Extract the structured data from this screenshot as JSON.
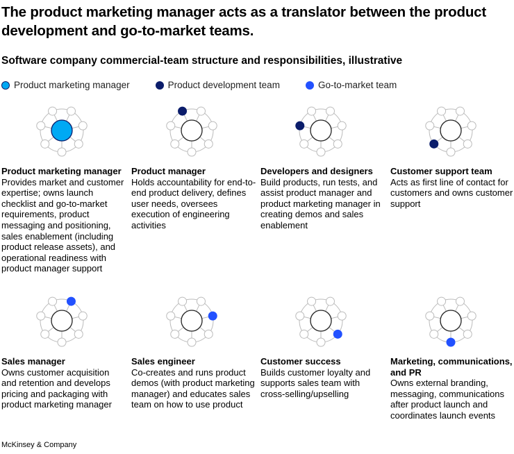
{
  "title": "The product marketing manager acts as a translator between the product development and go-to-market teams.",
  "subtitle": "Software company commercial-team structure and responsibilities, illustrative",
  "colors": {
    "pmm": "#00a9f4",
    "dev": "#0b1d6b",
    "gtm": "#2251ff"
  },
  "legend": [
    {
      "label": "Product marketing manager",
      "color": "#00a9f4"
    },
    {
      "label": "Product development team",
      "color": "#0b1d6b"
    },
    {
      "label": "Go-to-market team",
      "color": "#2251ff"
    }
  ],
  "cards": [
    {
      "title": "Product marketing manager",
      "body": "Provides market and customer expertise; owns launch checklist and go-to-market requirements, product messaging and positioning, sales enablement (including product release assets), and operational readiness with product manager support",
      "highlight": "center",
      "group": "pmm"
    },
    {
      "title": "Product manager",
      "body": "Holds accountability for end-to-end product delivery, defines user needs, oversees execution of engineering activities",
      "highlight": 3,
      "group": "dev"
    },
    {
      "title": "Developers and designers",
      "body": "Build products, run tests, and assist product manager and product marketing manager in creating demos and sales enablement",
      "highlight": 2,
      "group": "dev"
    },
    {
      "title": "Customer support team",
      "body": "Acts as first line of contact for customers and owns customer support",
      "highlight": 1,
      "group": "dev"
    },
    {
      "title": "Sales manager",
      "body": "Owns customer acquisition and retention and develops pricing and packaging with product marketing manager",
      "highlight": 4,
      "group": "gtm"
    },
    {
      "title": "Sales engineer",
      "body": "Co-creates and runs product demos (with product marketing manager) and educates sales team on how to use product",
      "highlight": 5,
      "group": "gtm"
    },
    {
      "title": "Customer success",
      "body": "Builds customer loyalty and supports sales team with cross-selling/upselling",
      "highlight": 6,
      "group": "gtm"
    },
    {
      "title": "Marketing, communications, and PR",
      "body": "Owns external branding, messaging, communications after product launch and coordinates launch events",
      "highlight": 0,
      "group": "gtm"
    }
  ],
  "footer": "McKinsey & Company"
}
